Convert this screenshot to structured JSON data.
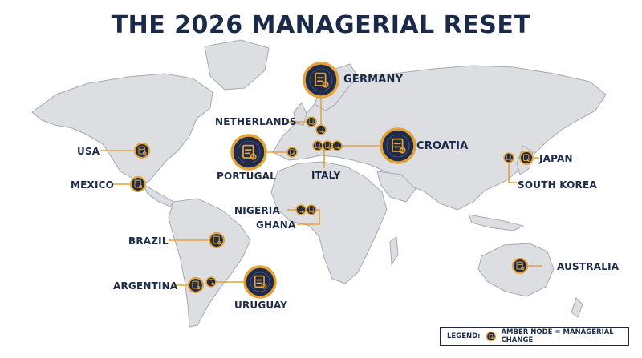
{
  "title": "THE 2026 MANAGERIAL RESET",
  "labels": {
    "germany": "GERMANY",
    "netherlands": "NETHERLANDS",
    "croatia": "CROATIA",
    "usa": "USA",
    "portugal": "PORTUGAL",
    "italy": "ITALY",
    "japan": "JAPAN",
    "mexico": "MEXICO",
    "south_korea": "SOUTH KOREA",
    "nigeria": "NIGERIA",
    "ghana": "GHANA",
    "brazil": "BRAZIL",
    "australia": "AUSTRALIA",
    "argentina": "ARGENTINA",
    "uruguay": "URUGUAY"
  },
  "legend": {
    "prefix": "LEGEND:",
    "text": "AMBER NODE = MANAGERIAL CHANGE"
  },
  "colors": {
    "accent": "#e3a33a",
    "navy": "#1f2b49",
    "land": "#dcdee2"
  },
  "icon": "clipboard-whistle-icon"
}
